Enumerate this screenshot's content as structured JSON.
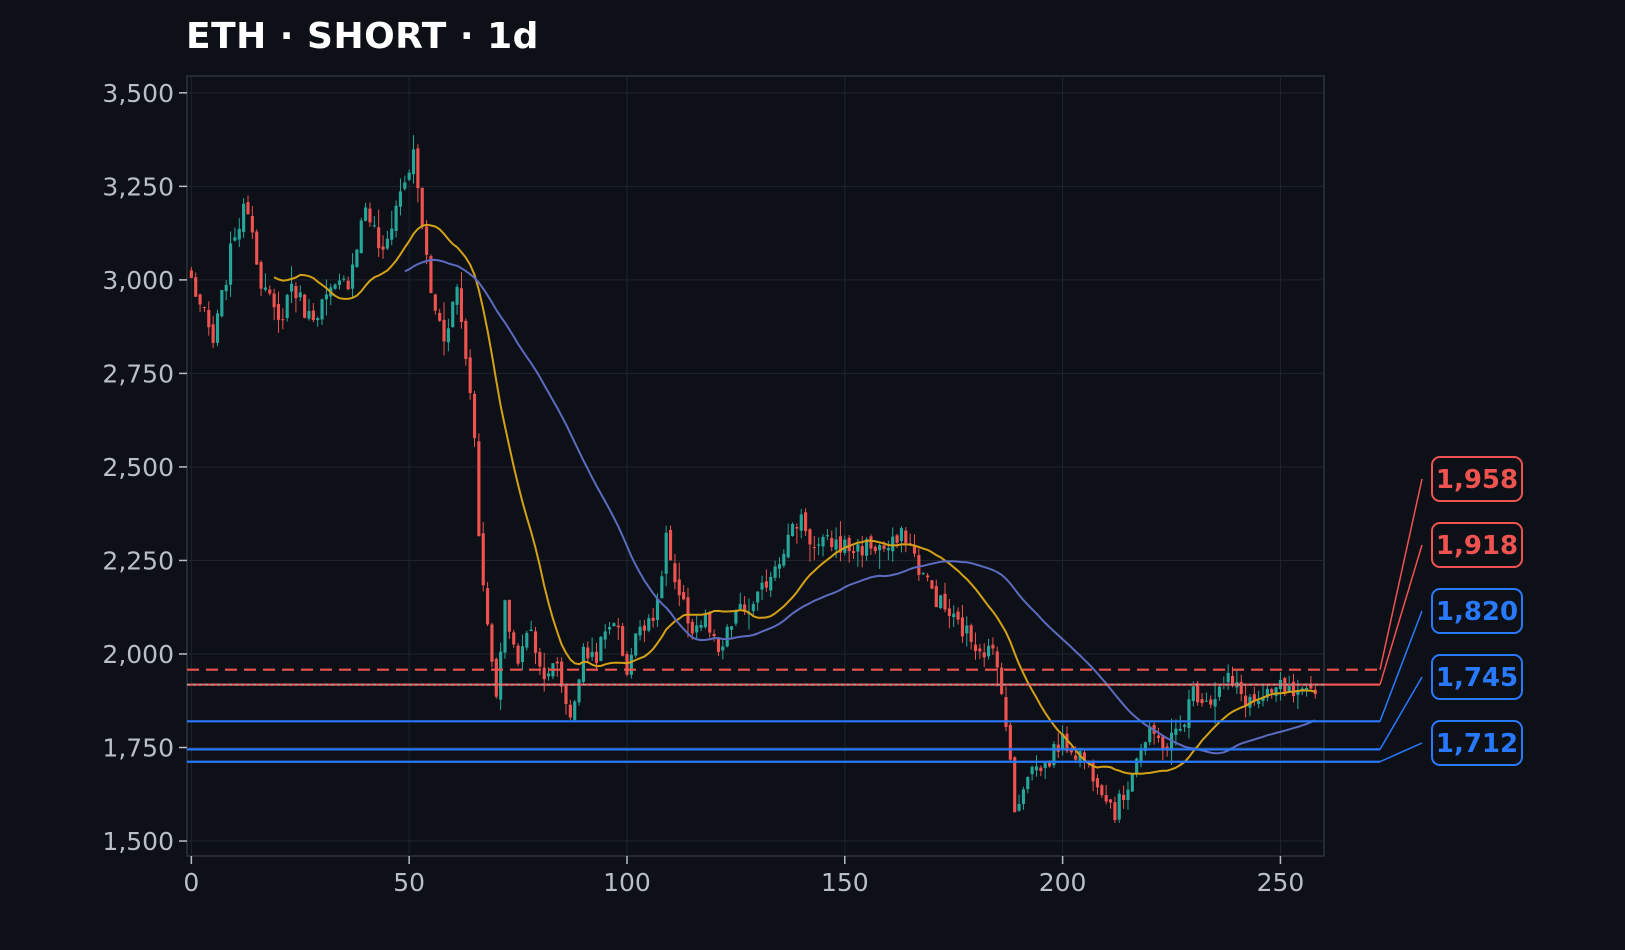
{
  "chart_data": {
    "type": "candlestick",
    "title": "ETH · SHORT · 1d",
    "xlabel": "",
    "ylabel": "",
    "xlim": [
      -1,
      260
    ],
    "ylim": [
      1460,
      3545
    ],
    "x_ticks": [
      0,
      50,
      100,
      150,
      200,
      250
    ],
    "x_tick_labels": [
      "0",
      "50",
      "100",
      "150",
      "200",
      "250"
    ],
    "y_ticks": [
      1500,
      1750,
      2000,
      2250,
      2500,
      2750,
      3000,
      3250,
      3500
    ],
    "y_tick_labels": [
      "1,500",
      "1,750",
      "2,000",
      "2,250",
      "2,500",
      "2,750",
      "3,000",
      "3,250",
      "3,500"
    ],
    "grid": true,
    "colors": {
      "background": "#0d1017",
      "plot_border": "#2e333d",
      "grid": "#1f242d",
      "up": "#26a69a",
      "down": "#ef5350",
      "ma_fast": "#d4a017",
      "ma_slow": "#5c6bc0",
      "stop_level": "#ef5350",
      "target_level": "#2979ff",
      "entry_marker": "#9aa0a8"
    },
    "close_anchors": [
      [
        0,
        3000
      ],
      [
        5,
        2830
      ],
      [
        10,
        3130
      ],
      [
        13,
        3200
      ],
      [
        16,
        3000
      ],
      [
        20,
        2880
      ],
      [
        23,
        2990
      ],
      [
        27,
        2900
      ],
      [
        32,
        2960
      ],
      [
        36,
        3000
      ],
      [
        40,
        3200
      ],
      [
        44,
        3060
      ],
      [
        47,
        3200
      ],
      [
        51,
        3330
      ],
      [
        53,
        3150
      ],
      [
        55,
        2960
      ],
      [
        58,
        2850
      ],
      [
        61,
        2980
      ],
      [
        63,
        2800
      ],
      [
        65,
        2600
      ],
      [
        66,
        2300
      ],
      [
        68,
        2100
      ],
      [
        69,
        1960
      ],
      [
        70,
        1880
      ],
      [
        72,
        2120
      ],
      [
        75,
        1980
      ],
      [
        78,
        2080
      ],
      [
        80,
        1960
      ],
      [
        84,
        1960
      ],
      [
        87,
        1830
      ],
      [
        90,
        2000
      ],
      [
        93,
        2000
      ],
      [
        97,
        2100
      ],
      [
        100,
        1960
      ],
      [
        103,
        2080
      ],
      [
        107,
        2120
      ],
      [
        109,
        2320
      ],
      [
        111,
        2170
      ],
      [
        115,
        2070
      ],
      [
        118,
        2090
      ],
      [
        121,
        1990
      ],
      [
        125,
        2110
      ],
      [
        129,
        2120
      ],
      [
        133,
        2220
      ],
      [
        137,
        2310
      ],
      [
        140,
        2370
      ],
      [
        143,
        2280
      ],
      [
        147,
        2300
      ],
      [
        152,
        2280
      ],
      [
        156,
        2290
      ],
      [
        160,
        2280
      ],
      [
        164,
        2320
      ],
      [
        167,
        2230
      ],
      [
        171,
        2150
      ],
      [
        175,
        2090
      ],
      [
        180,
        2030
      ],
      [
        184,
        2000
      ],
      [
        186,
        1920
      ],
      [
        188,
        1700
      ],
      [
        189,
        1580
      ],
      [
        192,
        1690
      ],
      [
        196,
        1700
      ],
      [
        199,
        1760
      ],
      [
        201,
        1760
      ],
      [
        205,
        1720
      ],
      [
        209,
        1650
      ],
      [
        212,
        1580
      ],
      [
        214,
        1620
      ],
      [
        217,
        1730
      ],
      [
        220,
        1780
      ],
      [
        224,
        1760
      ],
      [
        227,
        1800
      ],
      [
        230,
        1900
      ],
      [
        234,
        1880
      ],
      [
        238,
        1930
      ],
      [
        242,
        1880
      ],
      [
        246,
        1870
      ],
      [
        250,
        1910
      ],
      [
        254,
        1880
      ],
      [
        258,
        1890
      ]
    ],
    "n_candles": 259,
    "series": [
      {
        "name": "",
        "kind": "moving-average",
        "period": 20
      },
      {
        "name": "",
        "kind": "moving-average",
        "period": 50
      }
    ],
    "horizontal_levels": [
      {
        "value": 1958,
        "label": "1,958",
        "kind": "stop",
        "style": "dashed"
      },
      {
        "value": 1918,
        "label": "1,918",
        "kind": "stop",
        "style": "solid"
      },
      {
        "value": 1820,
        "label": "1,820",
        "kind": "target",
        "style": "solid"
      },
      {
        "value": 1745,
        "label": "1,745",
        "kind": "target",
        "style": "solid"
      },
      {
        "value": 1712,
        "label": "1,712",
        "kind": "target",
        "style": "solid"
      }
    ],
    "entry_marker_value": 1918
  }
}
